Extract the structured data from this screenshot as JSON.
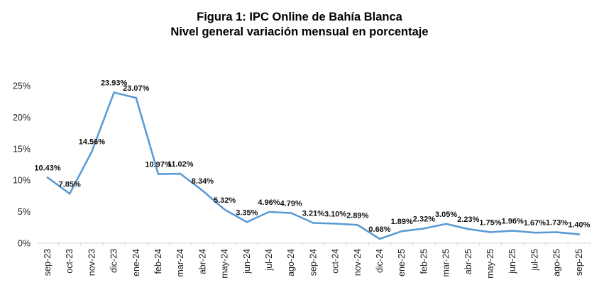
{
  "chart_data": {
    "type": "line",
    "title": "Figura 1: IPC Online de Bahía Blanca",
    "subtitle": "Nivel general variación mensual en porcentaje",
    "xlabel": "",
    "ylabel": "",
    "ylim": [
      0,
      25
    ],
    "yticks": [
      "0%",
      "5%",
      "10%",
      "15%",
      "20%",
      "25%"
    ],
    "ytick_values": [
      0,
      5,
      10,
      15,
      20,
      25
    ],
    "grid": false,
    "legend": "none",
    "line_color": "#5b9bd5",
    "categories": [
      "sep-23",
      "oct-23",
      "nov-23",
      "dic-23",
      "ene-24",
      "feb-24",
      "mar-24",
      "abr-24",
      "may-24",
      "jun-24",
      "jul-24",
      "ago-24",
      "sep-24",
      "oct-24",
      "nov-24",
      "dic-24",
      "ene-25",
      "feb-25",
      "mar-25",
      "abr-25",
      "may-25",
      "jun-25",
      "jul-25",
      "ago-25",
      "sep-25"
    ],
    "values": [
      10.43,
      7.85,
      14.56,
      23.93,
      23.07,
      10.97,
      11.02,
      8.34,
      5.32,
      3.35,
      4.96,
      4.79,
      3.21,
      3.1,
      2.89,
      0.68,
      1.89,
      2.32,
      3.05,
      2.23,
      1.75,
      1.96,
      1.67,
      1.73,
      1.4
    ],
    "data_labels": [
      "10.43%",
      "7.85%",
      "14.56%",
      "23.93%",
      "23.07%",
      "10.97%",
      "11.02%",
      "8.34%",
      "5.32%",
      "3.35%",
      "4.96%",
      "4.79%",
      "3.21%",
      "3.10%",
      "2.89%",
      "0.68%",
      "1.89%",
      "2.32%",
      "3.05%",
      "2.23%",
      "1.75%",
      "1.96%",
      "1.67%",
      "1.73%",
      "1.40%"
    ]
  }
}
